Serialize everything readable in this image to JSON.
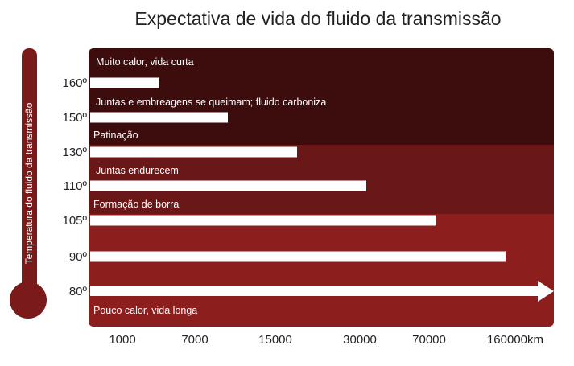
{
  "chart_data": {
    "type": "bar",
    "orientation": "horizontal",
    "title": "Expectativa de vida do fluido da transmissão",
    "ylabel": "Temperatura do fluido da transmissão",
    "categories": [
      "160º",
      "150º",
      "130º",
      "110º",
      "105º",
      "90º",
      "80º"
    ],
    "x_ticks": [
      "1000",
      "7000",
      "15000",
      "30000",
      "70000",
      "160000km"
    ],
    "values": [
      7000,
      15000,
      30000,
      70000,
      160000,
      ">160000",
      null
    ],
    "arrow_category": "80º",
    "zones": [
      {
        "labels": [
          "Muito calor, vida curta",
          "Juntas e embreagens se queimam; fluido carboniza",
          "Patinação"
        ],
        "color": "#3d0d0d"
      },
      {
        "labels": [
          "Juntas endurecem",
          "Formação de borra"
        ],
        "color": "#6a1717"
      },
      {
        "labels": [
          "Pouco calor, vida longa"
        ],
        "color": "#8c1e1e"
      }
    ],
    "thermometer_color": "#7a1a1a",
    "bar_color": "#ffffff"
  }
}
